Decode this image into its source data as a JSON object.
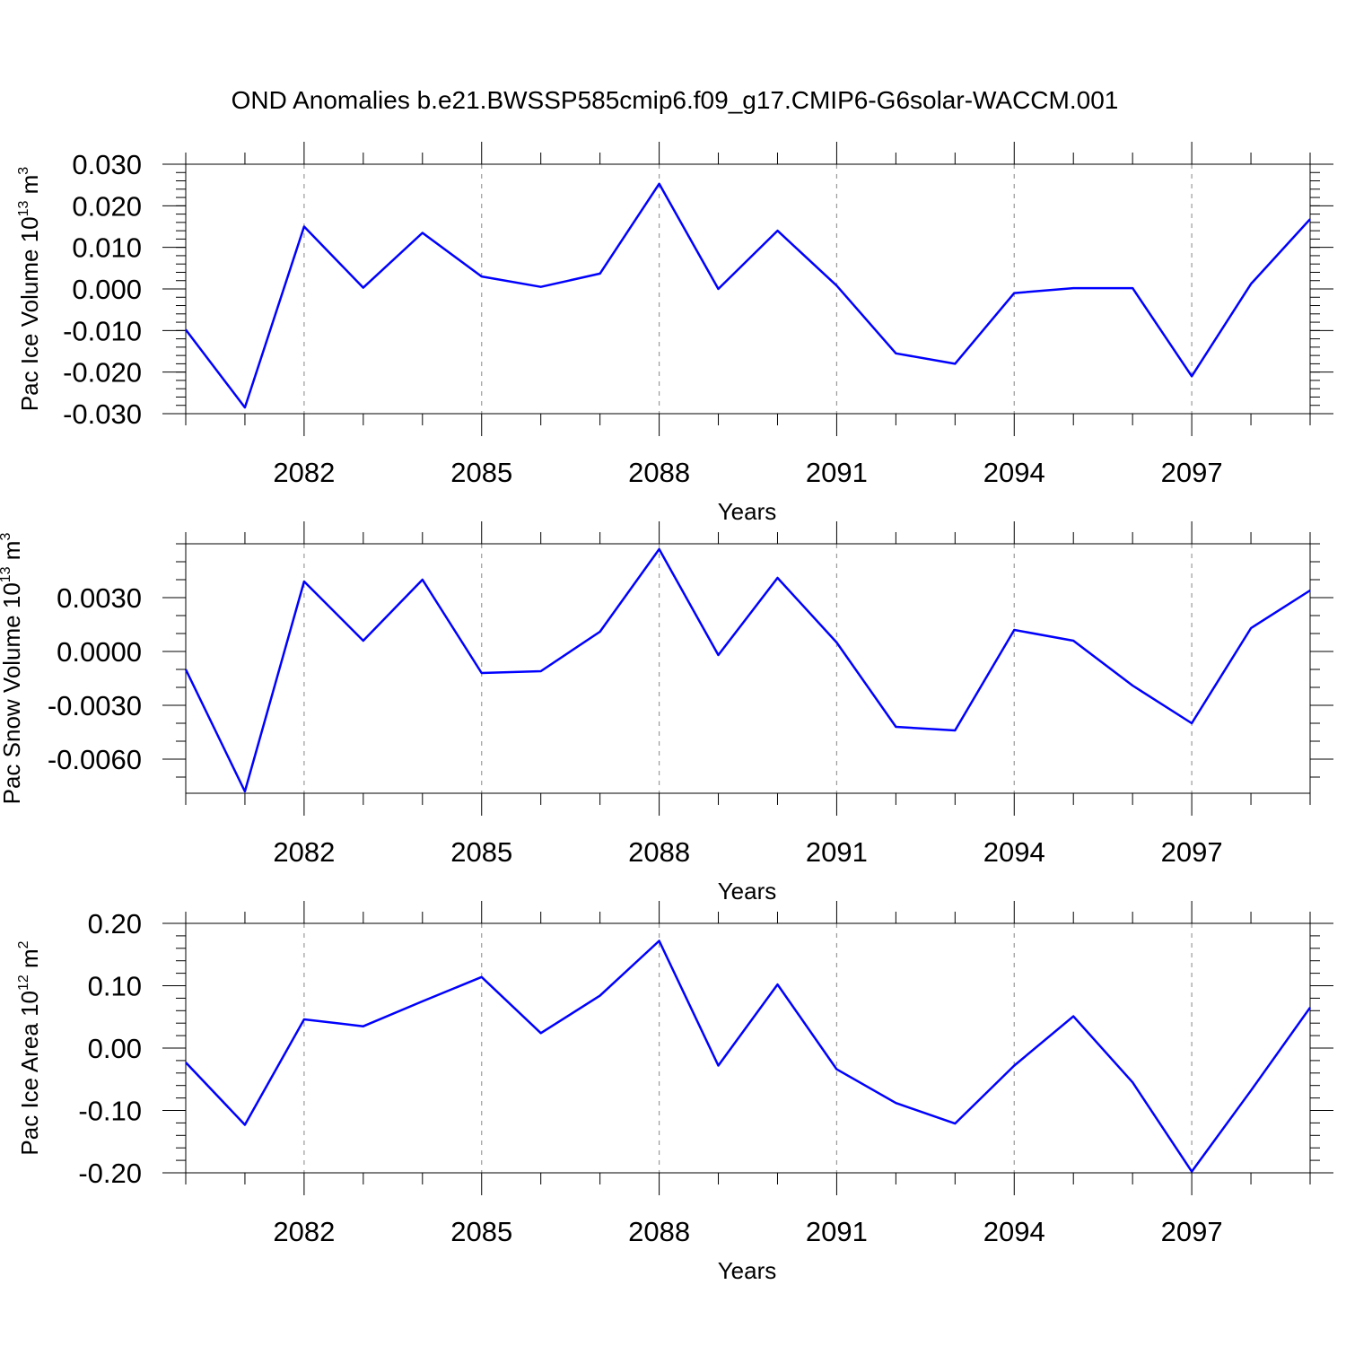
{
  "figure": {
    "title": "OND Anomalies b.e21.BWSSP585cmip6.f09_g17.CMIP6-G6solar-WACCM.001"
  },
  "colors": {
    "series": "#0000ff",
    "grid": "#9a9a9a",
    "frame": "#000000"
  },
  "chart_data": [
    {
      "type": "line",
      "title": "",
      "xlabel": "Years",
      "ylabel": {
        "text": "Pac Ice Volume 10",
        "exp": "13",
        "unit": " m",
        "unit_exp": "3"
      },
      "x": [
        2080,
        2081,
        2082,
        2083,
        2084,
        2085,
        2086,
        2087,
        2088,
        2089,
        2090,
        2091,
        2092,
        2093,
        2094,
        2095,
        2096,
        2097,
        2098,
        2099
      ],
      "series": [
        {
          "values": [
            -0.0098,
            -0.0285,
            0.015,
            0.0003,
            0.0135,
            0.003,
            0.0005,
            0.0037,
            0.0253,
            0.0,
            0.014,
            0.0008,
            -0.0155,
            -0.018,
            -0.001,
            0.0002,
            0.0002,
            -0.021,
            0.0012,
            0.0168
          ]
        }
      ],
      "xlim": [
        2080,
        2099
      ],
      "ylim": [
        -0.03,
        0.03
      ],
      "xticks": [
        2082,
        2085,
        2088,
        2091,
        2094,
        2097
      ],
      "xtick_labels": [
        "2082",
        "2085",
        "2088",
        "2091",
        "2094",
        "2097"
      ],
      "yticks": [
        0.03,
        0.02,
        0.01,
        0.0,
        -0.01,
        -0.02,
        -0.03
      ],
      "ytick_labels": [
        "0.030",
        "0.020",
        "0.010",
        "0.000",
        "-0.010",
        "-0.020",
        "-0.030"
      ],
      "yminor_step": 0.002,
      "grid": "vertical dashed at major x ticks",
      "legend": "none"
    },
    {
      "type": "line",
      "title": "",
      "xlabel": "Years",
      "ylabel": {
        "text": "Pac Snow Volume 10",
        "exp": "13",
        "unit": " m",
        "unit_exp": "3"
      },
      "x": [
        2080,
        2081,
        2082,
        2083,
        2084,
        2085,
        2086,
        2087,
        2088,
        2089,
        2090,
        2091,
        2092,
        2093,
        2094,
        2095,
        2096,
        2097,
        2098,
        2099
      ],
      "series": [
        {
          "values": [
            -0.001,
            -0.0078,
            0.0039,
            0.0006,
            0.004,
            -0.0012,
            -0.0011,
            0.0011,
            0.0057,
            -0.0002,
            0.0041,
            0.0005,
            -0.0042,
            -0.0044,
            0.0012,
            0.0006,
            -0.0019,
            -0.004,
            0.0013,
            0.0034
          ]
        }
      ],
      "xlim": [
        2080,
        2099
      ],
      "ylim": [
        -0.0079,
        0.006
      ],
      "xticks": [
        2082,
        2085,
        2088,
        2091,
        2094,
        2097
      ],
      "xtick_labels": [
        "2082",
        "2085",
        "2088",
        "2091",
        "2094",
        "2097"
      ],
      "yticks": [
        0.003,
        0.0,
        -0.003,
        -0.006
      ],
      "ytick_labels": [
        "0.0030",
        "0.0000",
        "-0.0030",
        "-0.0060"
      ],
      "yminor_step": 0.001,
      "grid": "vertical dashed at major x ticks",
      "legend": "none"
    },
    {
      "type": "line",
      "title": "",
      "xlabel": "Years",
      "ylabel": {
        "text": "Pac Ice Area 10",
        "exp": "12",
        "unit": " m",
        "unit_exp": "2"
      },
      "x": [
        2080,
        2081,
        2082,
        2083,
        2084,
        2085,
        2086,
        2087,
        2088,
        2089,
        2090,
        2091,
        2092,
        2093,
        2094,
        2095,
        2096,
        2097,
        2098,
        2099
      ],
      "series": [
        {
          "values": [
            -0.023,
            -0.123,
            0.046,
            0.035,
            0.075,
            0.114,
            0.024,
            0.084,
            0.172,
            -0.028,
            0.102,
            -0.034,
            -0.088,
            -0.121,
            -0.028,
            0.051,
            -0.055,
            -0.198,
            -0.068,
            0.065
          ]
        }
      ],
      "xlim": [
        2080,
        2099
      ],
      "ylim": [
        -0.2,
        0.2
      ],
      "xticks": [
        2082,
        2085,
        2088,
        2091,
        2094,
        2097
      ],
      "xtick_labels": [
        "2082",
        "2085",
        "2088",
        "2091",
        "2094",
        "2097"
      ],
      "yticks": [
        0.2,
        0.1,
        0.0,
        -0.1,
        -0.2
      ],
      "ytick_labels": [
        "0.20",
        "0.10",
        "0.00",
        "-0.10",
        "-0.20"
      ],
      "yminor_step": 0.02,
      "grid": "vertical dashed at major x ticks",
      "legend": "none"
    }
  ]
}
